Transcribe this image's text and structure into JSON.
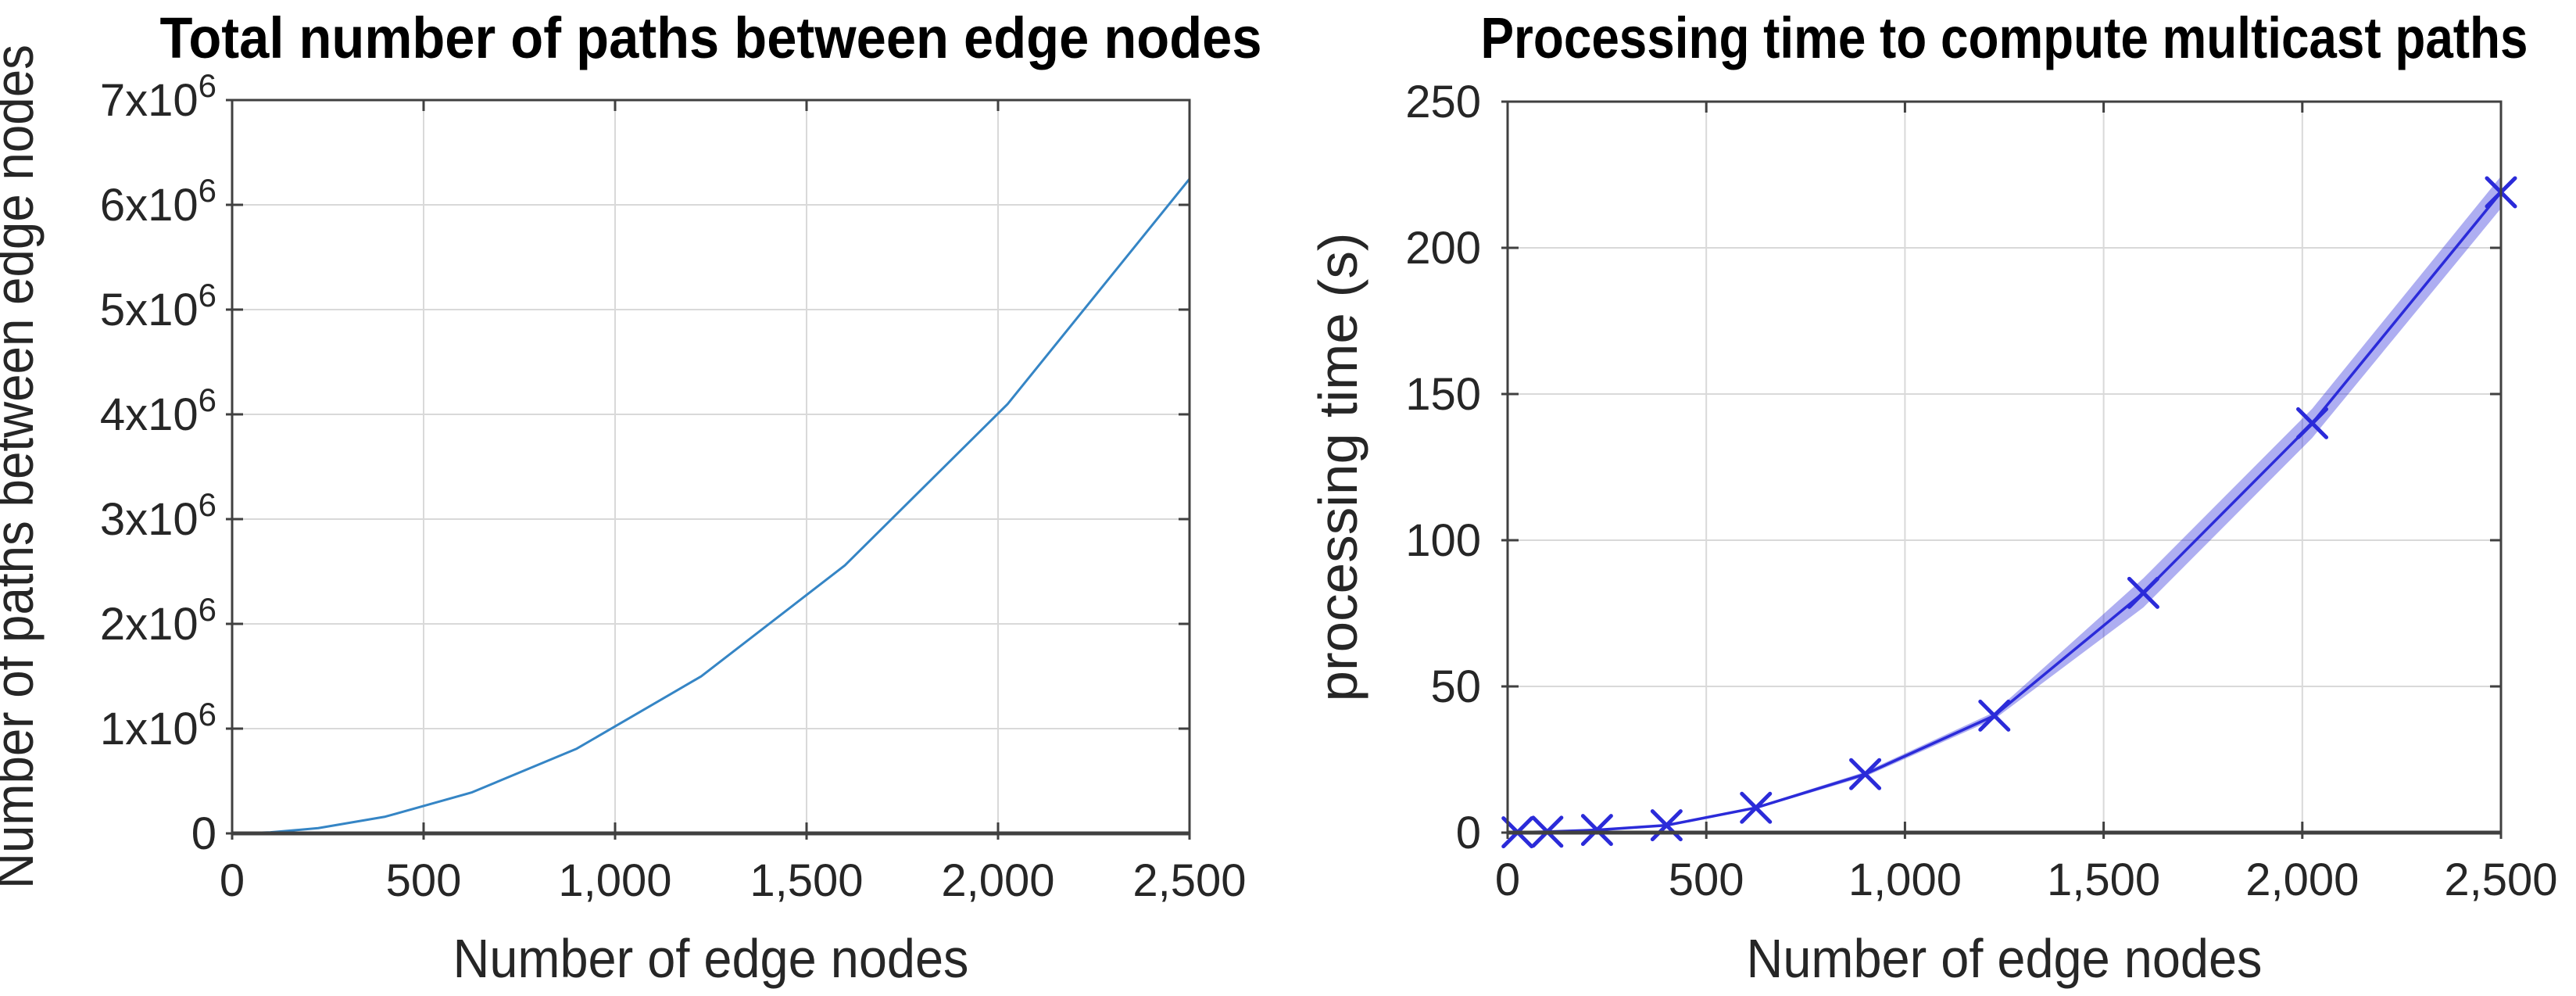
{
  "figure": {
    "background": "#ffffff",
    "panel_count": 2
  },
  "chart_data": [
    {
      "type": "line",
      "title": "Total number of paths between edge nodes",
      "xlabel": "Number of edge nodes",
      "ylabel": "Number of paths between edge nodes",
      "x": [
        25,
        100,
        225,
        400,
        625,
        900,
        1225,
        1600,
        2025,
        2500
      ],
      "y": [
        600,
        9900,
        50400,
        159600,
        390000,
        809100,
        1499400,
        2558400,
        4098600,
        6247500
      ],
      "xlim": [
        0,
        2500
      ],
      "ylim": [
        0,
        7000000
      ],
      "x_ticks": [
        0,
        500,
        1000,
        1500,
        2000,
        2500
      ],
      "x_tick_labels": [
        "0",
        "500",
        "1,000",
        "1,500",
        "2,000",
        "2,500"
      ],
      "y_ticks": [
        0,
        1000000,
        2000000,
        3000000,
        4000000,
        5000000,
        6000000,
        7000000
      ],
      "y_tick_labels": [
        "0",
        "1x10^6",
        "2x10^6",
        "3x10^6",
        "4x10^6",
        "5x10^6",
        "6x10^6",
        "7x10^6"
      ],
      "grid": true,
      "legend": "none",
      "marker": "none",
      "line_color": "#3585c5",
      "line_width": 3
    },
    {
      "type": "line",
      "title": "Processing time to compute multicast paths",
      "xlabel": "Number of edge nodes",
      "ylabel": "processing time (s)",
      "x": [
        25,
        100,
        225,
        400,
        625,
        900,
        1225,
        1600,
        2025,
        2500
      ],
      "y": [
        0.1,
        0.3,
        0.9,
        2.5,
        8.5,
        20,
        40,
        82,
        140,
        219
      ],
      "band_halfwidth": [
        0.05,
        0.1,
        0.15,
        0.25,
        0.4,
        0.8,
        1.2,
        5,
        5,
        5.5
      ],
      "xlim": [
        0,
        2500
      ],
      "ylim": [
        0,
        250
      ],
      "x_ticks": [
        0,
        500,
        1000,
        1500,
        2000,
        2500
      ],
      "x_tick_labels": [
        "0",
        "500",
        "1,000",
        "1,500",
        "2,000",
        "2,500"
      ],
      "y_ticks": [
        0,
        50,
        100,
        150,
        200,
        250
      ],
      "y_tick_labels": [
        "0",
        "50",
        "100",
        "150",
        "200",
        "250"
      ],
      "grid": true,
      "legend": "none",
      "marker": "x",
      "line_color": "#2b2bd9",
      "line_width": 3.5,
      "band_color": "rgba(43,43,217,0.38)"
    }
  ],
  "style_colors": {
    "grid_color": "#d9d9d9",
    "frame_color": "#404040",
    "tick_label_color": "#262626",
    "title_color": "#000000"
  }
}
